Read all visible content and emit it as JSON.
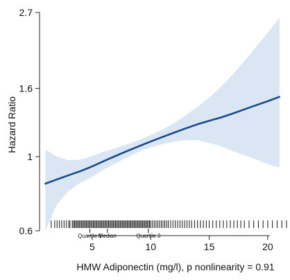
{
  "chart_data": {
    "type": "line",
    "title": "",
    "xlabel": "HMW Adiponectin (mg/l), p nonlinearity = 0.91",
    "ylabel": "Hazard Ratio",
    "y_scale": "log",
    "xlim": [
      0.8,
      21.9
    ],
    "ylim": [
      0.6,
      2.7
    ],
    "x_ticks": [
      5,
      10,
      15,
      20
    ],
    "x_tick_labels": [
      "5",
      "10",
      "15",
      "20"
    ],
    "y_ticks": [
      0.6,
      1,
      1.6,
      2.7
    ],
    "y_tick_labels": [
      "0.6",
      "1",
      "1.6",
      "2.7"
    ],
    "grid": false,
    "legend": "none",
    "quantile_markers": [
      {
        "label": "Quartile 1",
        "x": 4.8
      },
      {
        "label": "Median",
        "x": 6.3
      },
      {
        "label": "Quartile 3",
        "x": 9.8
      }
    ],
    "series": [
      {
        "x": [
          1,
          2,
          3,
          4,
          5,
          6,
          7,
          8,
          9,
          10,
          11,
          12,
          13,
          14,
          15,
          16,
          17,
          18,
          19,
          20,
          21
        ],
        "values": [
          0.83,
          0.855,
          0.88,
          0.905,
          0.935,
          0.97,
          1.005,
          1.04,
          1.075,
          1.11,
          1.145,
          1.18,
          1.215,
          1.25,
          1.28,
          1.31,
          1.345,
          1.385,
          1.425,
          1.465,
          1.51
        ],
        "ci_lower": [
          0.6,
          0.72,
          0.79,
          0.835,
          0.87,
          0.915,
          0.955,
          0.995,
          1.035,
          1.065,
          1.09,
          1.11,
          1.12,
          1.12,
          1.1,
          1.075,
          1.04,
          1.01,
          0.98,
          0.95,
          0.925
        ],
        "ci_upper": [
          1.05,
          1.0,
          0.975,
          0.98,
          1.005,
          1.035,
          1.06,
          1.09,
          1.12,
          1.16,
          1.205,
          1.26,
          1.33,
          1.41,
          1.5,
          1.62,
          1.76,
          1.93,
          2.13,
          2.35,
          2.6
        ]
      }
    ],
    "rug_x": [
      1.2,
      1.5,
      1.8,
      2.0,
      2.2,
      2.4,
      2.6,
      2.8,
      3.0,
      3.1,
      3.3,
      3.4,
      3.5,
      3.6,
      3.7,
      3.8,
      3.9,
      4.0,
      4.1,
      4.2,
      4.3,
      4.4,
      4.5,
      4.6,
      4.7,
      4.8,
      4.9,
      5.0,
      5.1,
      5.2,
      5.3,
      5.4,
      5.5,
      5.6,
      5.7,
      5.8,
      5.9,
      6.0,
      6.1,
      6.2,
      6.3,
      6.4,
      6.5,
      6.6,
      6.7,
      6.8,
      6.9,
      7.0,
      7.1,
      7.2,
      7.3,
      7.4,
      7.5,
      7.6,
      7.7,
      7.8,
      7.9,
      8.0,
      8.1,
      8.2,
      8.3,
      8.4,
      8.5,
      8.6,
      8.7,
      8.8,
      8.9,
      9.0,
      9.1,
      9.2,
      9.3,
      9.4,
      9.5,
      9.6,
      9.7,
      9.8,
      9.9,
      10.0,
      10.15,
      10.3,
      10.45,
      10.6,
      10.75,
      10.9,
      11.05,
      11.2,
      11.35,
      11.5,
      11.7,
      11.9,
      12.1,
      12.3,
      12.5,
      12.7,
      12.9,
      13.1,
      13.3,
      13.5,
      13.75,
      14.0,
      14.25,
      14.5,
      14.75,
      15.0,
      15.3,
      15.6,
      15.9,
      16.2,
      16.5,
      16.8,
      17.1,
      17.4,
      17.7,
      18.0,
      18.4,
      18.8,
      19.2,
      19.6,
      20.0,
      20.4,
      20.8,
      21.2,
      21.6
    ],
    "colors": {
      "line": "#174a88",
      "ci_band": "#dbe6f4",
      "axis": "#222222",
      "rug": "#111111"
    }
  }
}
